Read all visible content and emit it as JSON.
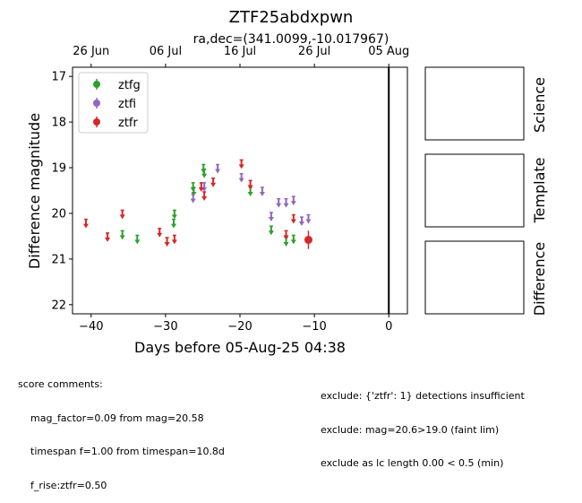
{
  "chart_data": {
    "type": "scatter",
    "title": "ZTF25abdxpwn",
    "subtitle": "ra,dec=(341.0099,-10.017967)",
    "xlabel": "Days before 05-Aug-25 04:38",
    "ylabel": "Difference magnitude",
    "xlim": [
      -42.5,
      2.5
    ],
    "ylim": [
      22.2,
      16.8
    ],
    "y_inverted": true,
    "x_ticks": [
      -40,
      -30,
      -20,
      -10,
      0
    ],
    "y_ticks": [
      17,
      18,
      19,
      20,
      21,
      22
    ],
    "top_axis_ticks": [
      {
        "x": -40,
        "label": "26 Jun"
      },
      {
        "x": -30,
        "label": "06 Jul"
      },
      {
        "x": -20,
        "label": "16 Jul"
      },
      {
        "x": -10,
        "label": "26 Jul"
      },
      {
        "x": 0,
        "label": "05 Aug"
      }
    ],
    "vline_x": 0,
    "legend_position": "upper-left",
    "series": [
      {
        "name": "ztfg",
        "color": "#2ca02c",
        "upper_limits": [
          [
            -35.8,
            20.4
          ],
          [
            -33.8,
            20.5
          ],
          [
            -28.9,
            20.15
          ],
          [
            -28.8,
            19.95
          ],
          [
            -26.3,
            19.35
          ],
          [
            -26.2,
            19.45
          ],
          [
            -24.9,
            18.95
          ],
          [
            -24.8,
            19.05
          ],
          [
            -18.6,
            19.45
          ],
          [
            -15.8,
            20.3
          ],
          [
            -13.8,
            20.55
          ],
          [
            -12.8,
            20.5
          ]
        ],
        "detections": []
      },
      {
        "name": "ztfi",
        "color": "#9467bd",
        "upper_limits": [
          [
            -26.3,
            19.6
          ],
          [
            -24.8,
            19.35
          ],
          [
            -23.0,
            18.95
          ],
          [
            -19.8,
            19.15
          ],
          [
            -17.0,
            19.45
          ],
          [
            -15.8,
            20.0
          ],
          [
            -14.8,
            19.7
          ],
          [
            -13.8,
            19.7
          ],
          [
            -12.8,
            19.65
          ],
          [
            -11.7,
            20.1
          ],
          [
            -10.8,
            20.05
          ]
        ],
        "detections": []
      },
      {
        "name": "ztfr",
        "color": "#d62728",
        "upper_limits": [
          [
            -40.7,
            20.15
          ],
          [
            -37.8,
            20.45
          ],
          [
            -35.8,
            19.95
          ],
          [
            -30.8,
            20.35
          ],
          [
            -29.8,
            20.55
          ],
          [
            -28.8,
            20.5
          ],
          [
            -25.2,
            19.35
          ],
          [
            -24.8,
            19.55
          ],
          [
            -23.6,
            19.25
          ],
          [
            -19.8,
            18.85
          ],
          [
            -18.6,
            19.3
          ],
          [
            -13.8,
            20.4
          ],
          [
            -12.8,
            20.05
          ]
        ],
        "detections": [
          {
            "x": -10.8,
            "y": 20.58,
            "err": 0.2
          }
        ]
      }
    ]
  },
  "side_panels": [
    "Science",
    "Template",
    "Difference"
  ],
  "comments_left": {
    "heading": "score comments:",
    "lines": [
      "mag_factor=0.09 from mag=20.58",
      "timespan f=1.00 from timespan=10.8d",
      "f_rise:ztfr=0.50"
    ]
  },
  "comments_right": {
    "lines": [
      "exclude: {'ztfr': 1} detections insufficient",
      "exclude: mag=20.6>19.0 (faint lim)",
      "exclude as lc length 0.00 < 0.5 (min)"
    ]
  }
}
